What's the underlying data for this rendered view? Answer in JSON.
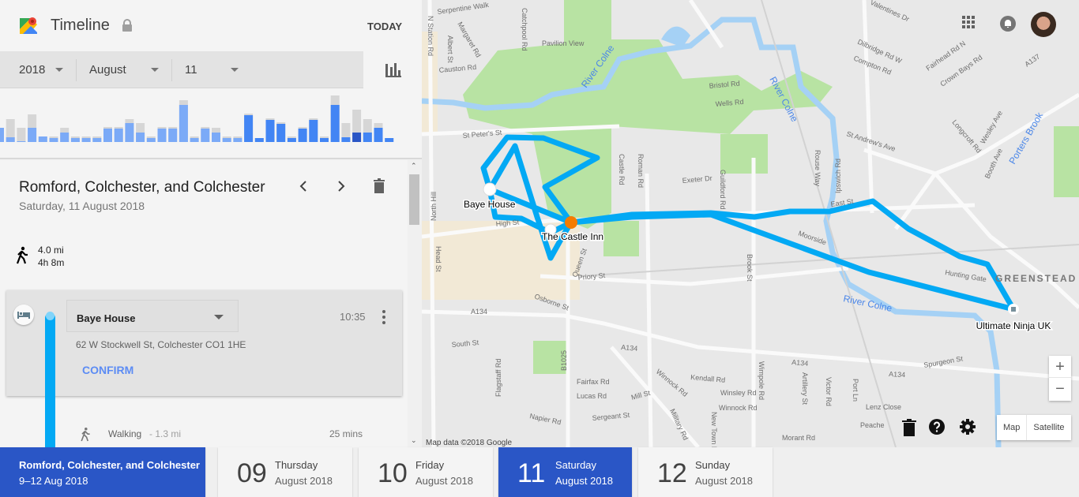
{
  "header": {
    "title": "Timeline",
    "today_label": "TODAY",
    "icons": [
      "google-maps-logo",
      "lock-icon"
    ]
  },
  "date_selector": {
    "year": "2018",
    "month": "August",
    "day": "11",
    "chart_icon": "bar-chart-icon"
  },
  "activity_chart": {
    "type": "bar",
    "description_values_note": "",
    "total": [
      18,
      29,
      18,
      35,
      7,
      7,
      18,
      7,
      7,
      7,
      19,
      19,
      29,
      24,
      7,
      19,
      19,
      53,
      7,
      19,
      18,
      7,
      7,
      36,
      5,
      30,
      25,
      7,
      19,
      30,
      7,
      59,
      24,
      41,
      29,
      24,
      5
    ],
    "moving": [
      18,
      6,
      1,
      18,
      7,
      5,
      12,
      5,
      5,
      5,
      17,
      17,
      24,
      12,
      5,
      17,
      17,
      47,
      5,
      17,
      12,
      5,
      5,
      34,
      5,
      28,
      23,
      5,
      17,
      28,
      5,
      47,
      6,
      12,
      12,
      18,
      5
    ],
    "selected_index": 33,
    "colors": {
      "past": "#7baaf7",
      "recent": "#4285f4",
      "selected": "#2a56c6",
      "other": "#d6d6d6"
    }
  },
  "day": {
    "title": "Romford, Colchester, and Colchester",
    "date": "Saturday, 11 August 2018",
    "distance": "4.0 mi",
    "duration": "4h 8m"
  },
  "timeline": {
    "place": {
      "name": "Baye House",
      "address": "62 W Stockwell St, Colchester CO1 1HE",
      "time": "10:35",
      "confirm_label": "CONFIRM"
    },
    "activity": {
      "type": "Walking",
      "distance": "- 1.3 mi",
      "duration": "25 mins"
    }
  },
  "map": {
    "route_color": "#03a9f4",
    "places": [
      "Baye House",
      "The Castle Inn",
      "Ultimate Ninja UK"
    ],
    "area": "GREENSTEAD",
    "rivers": [
      "River Colne",
      "River Colne",
      "River Colne",
      "Porters Brook"
    ],
    "roads": [
      "N Station Rd",
      "Serpentine Walk",
      "Margaret Rd",
      "Albert St",
      "Catchpool Rd",
      "Pavilion View",
      "Causton Rd",
      "St Peter's St",
      "North Hill",
      "High St",
      "Head St",
      "Bristol Rd",
      "Wells Rd",
      "Castle Rd",
      "Roman Rd",
      "Exeter Dr",
      "Guildford Rd",
      "Ipswich Rd",
      "St Andrew's Ave",
      "East St",
      "Valentines Dr",
      "Dilbridge Rd W",
      "Compton Rd",
      "Fairhead Rd N",
      "Crown Bays Rd",
      "A137",
      "Longcroft Rd",
      "Wesley Ave",
      "Booth Ave",
      "Rouse Way",
      "Priory St",
      "Osborne St",
      "A134",
      "A134",
      "A134",
      "A134",
      "South St",
      "B1025",
      "Queen St",
      "Fairfax Rd",
      "Lucas Rd",
      "Mill St",
      "Napier Rd",
      "Sergeant St",
      "Flagstaff Rd",
      "Kendall Rd",
      "Winnock Rd",
      "Winsley Rd",
      "Winnock Rd",
      "Military Rd",
      "New Town Rd",
      "Brook St",
      "Wimpole Rd",
      "Artillery St",
      "Victor Rd",
      "Port Ln",
      "Lenz Close",
      "Spurgeon St",
      "Morant Rd",
      "Hunting Gate",
      "Moorside",
      "Peache"
    ],
    "attribution": "Map data ©2018 Google",
    "zoom_in": "+",
    "zoom_out": "−",
    "map_type": [
      "Map",
      "Satellite"
    ]
  },
  "date_strip": {
    "summary": {
      "title": "Romford, Colchester, and Colchester",
      "range": "9–12 Aug 2018"
    },
    "days": [
      {
        "num": "09",
        "weekday": "Thursday",
        "month": "August 2018",
        "selected": false
      },
      {
        "num": "10",
        "weekday": "Friday",
        "month": "August 2018",
        "selected": false
      },
      {
        "num": "11",
        "weekday": "Saturday",
        "month": "August 2018",
        "selected": true
      },
      {
        "num": "12",
        "weekday": "Sunday",
        "month": "August 2018",
        "selected": false
      }
    ]
  }
}
